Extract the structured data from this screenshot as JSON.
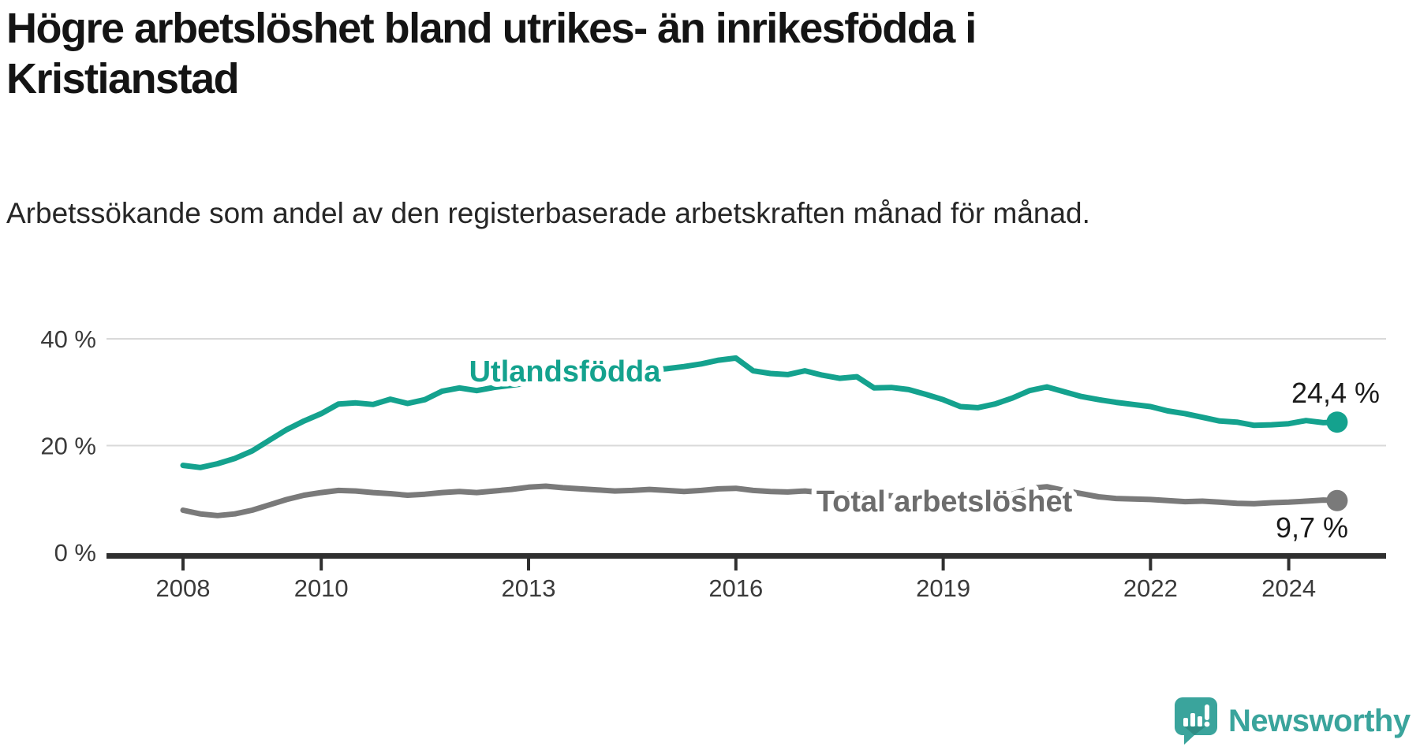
{
  "chart_data": {
    "type": "line",
    "title": "Högre arbetslöshet bland utrikes- än inrikesfödda i Kristianstad",
    "subtitle": "Arbetssökande som andel av den registerbaserade arbetskraften månad för månad.",
    "x_ticks": [
      2008,
      2010,
      2013,
      2016,
      2019,
      2022,
      2024
    ],
    "y_ticks": [
      {
        "value": 0,
        "label": "0 %"
      },
      {
        "value": 20,
        "label": "20 %"
      },
      {
        "value": 40,
        "label": "40 %"
      }
    ],
    "ylim": [
      0,
      42
    ],
    "x_range": [
      2008.0,
      2024.7
    ],
    "grid": "horizontal-only",
    "legend_position": "inline-labels-on-lines",
    "series": [
      {
        "name": "Utlandsfödda",
        "color": "#14a28e",
        "label_color": "#14a28e",
        "end_label": "24,4 %",
        "end_value": 24.4,
        "points": [
          [
            2008.0,
            16.3
          ],
          [
            2008.25,
            15.9
          ],
          [
            2008.5,
            16.6
          ],
          [
            2008.75,
            17.6
          ],
          [
            2009.0,
            19.0
          ],
          [
            2009.25,
            21.0
          ],
          [
            2009.5,
            23.0
          ],
          [
            2009.75,
            24.6
          ],
          [
            2010.0,
            26.0
          ],
          [
            2010.25,
            27.8
          ],
          [
            2010.5,
            28.0
          ],
          [
            2010.75,
            27.7
          ],
          [
            2011.0,
            28.7
          ],
          [
            2011.25,
            27.9
          ],
          [
            2011.5,
            28.6
          ],
          [
            2011.75,
            30.2
          ],
          [
            2012.0,
            30.8
          ],
          [
            2012.25,
            30.3
          ],
          [
            2012.5,
            30.9
          ],
          [
            2012.75,
            31.3
          ],
          [
            2013.0,
            31.7
          ],
          [
            2013.25,
            32.0
          ],
          [
            2013.5,
            32.4
          ],
          [
            2013.75,
            32.8
          ],
          [
            2014.0,
            33.1
          ],
          [
            2014.25,
            33.4
          ],
          [
            2014.5,
            33.7
          ],
          [
            2014.75,
            34.1
          ],
          [
            2015.0,
            34.4
          ],
          [
            2015.25,
            34.8
          ],
          [
            2015.5,
            35.3
          ],
          [
            2015.75,
            36.0
          ],
          [
            2016.0,
            36.4
          ],
          [
            2016.25,
            34.0
          ],
          [
            2016.5,
            33.5
          ],
          [
            2016.75,
            33.3
          ],
          [
            2017.0,
            34.0
          ],
          [
            2017.25,
            33.2
          ],
          [
            2017.5,
            32.6
          ],
          [
            2017.75,
            32.9
          ],
          [
            2018.0,
            30.8
          ],
          [
            2018.25,
            30.9
          ],
          [
            2018.5,
            30.5
          ],
          [
            2018.75,
            29.6
          ],
          [
            2019.0,
            28.6
          ],
          [
            2019.25,
            27.3
          ],
          [
            2019.5,
            27.1
          ],
          [
            2019.75,
            27.8
          ],
          [
            2020.0,
            28.9
          ],
          [
            2020.25,
            30.3
          ],
          [
            2020.5,
            31.0
          ],
          [
            2020.75,
            30.1
          ],
          [
            2021.0,
            29.2
          ],
          [
            2021.25,
            28.6
          ],
          [
            2021.5,
            28.1
          ],
          [
            2021.75,
            27.7
          ],
          [
            2022.0,
            27.3
          ],
          [
            2022.25,
            26.5
          ],
          [
            2022.5,
            26.0
          ],
          [
            2022.75,
            25.3
          ],
          [
            2023.0,
            24.6
          ],
          [
            2023.25,
            24.4
          ],
          [
            2023.5,
            23.8
          ],
          [
            2023.75,
            23.9
          ],
          [
            2024.0,
            24.1
          ],
          [
            2024.25,
            24.7
          ],
          [
            2024.5,
            24.3
          ],
          [
            2024.7,
            24.4
          ]
        ]
      },
      {
        "name": "Total arbetslöshet",
        "color": "#7a7a7a",
        "label_color": "#6d6d6d",
        "end_label": "9,7 %",
        "end_value": 9.7,
        "points": [
          [
            2008.0,
            7.9
          ],
          [
            2008.25,
            7.2
          ],
          [
            2008.5,
            6.9
          ],
          [
            2008.75,
            7.2
          ],
          [
            2009.0,
            7.9
          ],
          [
            2009.25,
            8.9
          ],
          [
            2009.5,
            9.9
          ],
          [
            2009.75,
            10.7
          ],
          [
            2010.0,
            11.2
          ],
          [
            2010.25,
            11.6
          ],
          [
            2010.5,
            11.5
          ],
          [
            2010.75,
            11.2
          ],
          [
            2011.0,
            11.0
          ],
          [
            2011.25,
            10.7
          ],
          [
            2011.5,
            10.9
          ],
          [
            2011.75,
            11.2
          ],
          [
            2012.0,
            11.4
          ],
          [
            2012.25,
            11.2
          ],
          [
            2012.5,
            11.5
          ],
          [
            2012.75,
            11.8
          ],
          [
            2013.0,
            12.2
          ],
          [
            2013.25,
            12.4
          ],
          [
            2013.5,
            12.1
          ],
          [
            2013.75,
            11.9
          ],
          [
            2014.0,
            11.7
          ],
          [
            2014.25,
            11.5
          ],
          [
            2014.5,
            11.6
          ],
          [
            2014.75,
            11.8
          ],
          [
            2015.0,
            11.6
          ],
          [
            2015.25,
            11.4
          ],
          [
            2015.5,
            11.6
          ],
          [
            2015.75,
            11.9
          ],
          [
            2016.0,
            12.0
          ],
          [
            2016.25,
            11.6
          ],
          [
            2016.5,
            11.4
          ],
          [
            2016.75,
            11.3
          ],
          [
            2017.0,
            11.5
          ],
          [
            2017.25,
            11.2
          ],
          [
            2017.5,
            10.9
          ],
          [
            2017.75,
            11.1
          ],
          [
            2018.0,
            10.8
          ],
          [
            2018.25,
            10.6
          ],
          [
            2018.5,
            10.4
          ],
          [
            2018.75,
            10.2
          ],
          [
            2019.0,
            10.3
          ],
          [
            2019.25,
            10.1
          ],
          [
            2019.5,
            10.2
          ],
          [
            2019.75,
            10.5
          ],
          [
            2020.0,
            10.9
          ],
          [
            2020.25,
            12.0
          ],
          [
            2020.5,
            12.3
          ],
          [
            2020.75,
            11.6
          ],
          [
            2021.0,
            11.0
          ],
          [
            2021.25,
            10.4
          ],
          [
            2021.5,
            10.1
          ],
          [
            2021.75,
            10.0
          ],
          [
            2022.0,
            9.9
          ],
          [
            2022.25,
            9.7
          ],
          [
            2022.5,
            9.5
          ],
          [
            2022.75,
            9.6
          ],
          [
            2023.0,
            9.4
          ],
          [
            2023.25,
            9.2
          ],
          [
            2023.5,
            9.1
          ],
          [
            2023.75,
            9.3
          ],
          [
            2024.0,
            9.4
          ],
          [
            2024.25,
            9.6
          ],
          [
            2024.5,
            9.8
          ],
          [
            2024.7,
            9.7
          ]
        ]
      }
    ]
  },
  "branding": {
    "logo_text": "Newsworthy",
    "logo_icon": "speech-bubble-with-bar-chart-and-exclamation",
    "brand_color": "#3aa49c"
  },
  "colors": {
    "background": "#ffffff",
    "title_text": "#141414",
    "subtitle_text": "#262626",
    "axis": "#2f2f2f",
    "axis_text": "#3a3a3a",
    "gridline": "#d9d9d9",
    "value_label_text": "#1a1a1a"
  }
}
